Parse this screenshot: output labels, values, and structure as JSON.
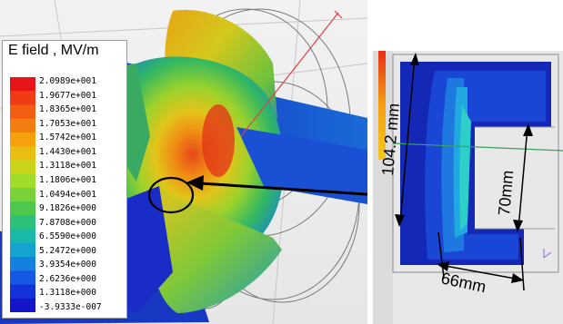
{
  "legend": {
    "title": "E field , MV/m",
    "labels": [
      "2.0989e+001",
      "1.9677e+001",
      "1.8365e+001",
      "1.7053e+001",
      "1.5742e+001",
      "1.4430e+001",
      "1.3118e+001",
      "1.1806e+001",
      "1.0494e+001",
      "9.1826e+000",
      "7.8708e+000",
      "6.5590e+000",
      "5.2472e+000",
      "3.9354e+000",
      "2.6236e+000",
      "1.3118e+000",
      "-3.9333e-007"
    ],
    "colors": [
      "#e8141a",
      "#ef3b16",
      "#f25d12",
      "#f47d10",
      "#f6a00c",
      "#e8be10",
      "#c8d41a",
      "#a2dc2a",
      "#7ad23a",
      "#4ec84c",
      "#2cc07a",
      "#1ab8a8",
      "#15a4d0",
      "#1480e0",
      "#1458e4",
      "#1432dc",
      "#1414c8"
    ]
  },
  "dimensions": {
    "height": "104.2 mm",
    "gap": "70mm",
    "width": "66mm"
  }
}
